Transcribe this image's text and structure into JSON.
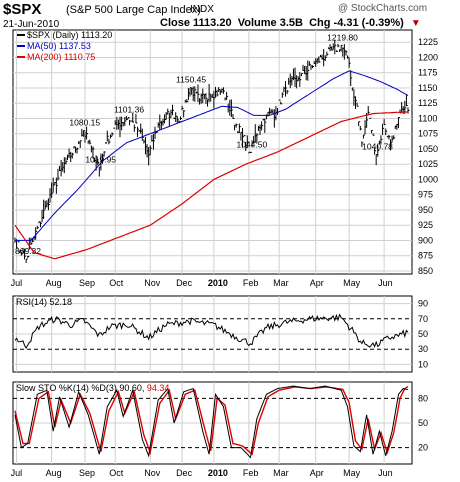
{
  "header": {
    "symbol": "$SPX",
    "description": "(S&P 500 Large Cap Index)",
    "exchange": "INDX",
    "watermark": "@ StockCharts.com",
    "date": "21-Jun-2010",
    "close_label": "Close",
    "close_value": "1113.20",
    "volume_label": "Volume",
    "volume_value": "3.5B",
    "chg_label": "Chg",
    "chg_value": "-4.31 (-0.39%)",
    "chg_icon": "down-triangle-icon"
  },
  "chart_data": [
    {
      "type": "line",
      "panel": "price",
      "legend": [
        "$SPX (Daily) 1113.20",
        "MA(50) 1137.53",
        "MA(200) 1110.75"
      ],
      "ylim": [
        845,
        1245
      ],
      "y_ticks": [
        850,
        875,
        900,
        925,
        950,
        975,
        1000,
        1025,
        1050,
        1075,
        1100,
        1125,
        1150,
        1175,
        1200,
        1225
      ],
      "x_ticks": [
        "Jul",
        "Aug",
        "Sep",
        "Oct",
        "Nov",
        "Dec",
        "2010",
        "Feb",
        "Mar",
        "Apr",
        "May",
        "Jun"
      ],
      "x_tick_index": [
        1,
        23,
        44,
        63,
        85,
        105,
        125,
        147,
        166,
        189,
        210,
        232
      ],
      "n_days": 248,
      "annotations": [
        {
          "day": 7,
          "value": 869.32,
          "label": "869.32"
        },
        {
          "day": 43,
          "value": 1080.15,
          "label": "1080.15"
        },
        {
          "day": 53,
          "value": 1019.95,
          "label": "1019.95"
        },
        {
          "day": 71,
          "value": 1101.36,
          "label": "1101.36"
        },
        {
          "day": 110,
          "value": 1150.45,
          "label": "1150.45"
        },
        {
          "day": 148,
          "value": 1044.5,
          "label": "1044.50"
        },
        {
          "day": 205,
          "value": 1219.8,
          "label": "1219.80"
        },
        {
          "day": 227,
          "value": 1040.78,
          "label": "1040.78"
        }
      ],
      "price_anchors": [
        [
          0,
          900
        ],
        [
          7,
          869.32
        ],
        [
          12,
          905
        ],
        [
          20,
          960
        ],
        [
          30,
          1020
        ],
        [
          40,
          1060
        ],
        [
          43,
          1080.15
        ],
        [
          48,
          1050
        ],
        [
          53,
          1019.95
        ],
        [
          57,
          1060
        ],
        [
          64,
          1090
        ],
        [
          71,
          1101.36
        ],
        [
          78,
          1080
        ],
        [
          84,
          1040
        ],
        [
          90,
          1090
        ],
        [
          98,
          1110
        ],
        [
          104,
          1100
        ],
        [
          110,
          1150.45
        ],
        [
          116,
          1130
        ],
        [
          122,
          1140
        ],
        [
          131,
          1145
        ],
        [
          137,
          1100
        ],
        [
          143,
          1070
        ],
        [
          148,
          1044.5
        ],
        [
          153,
          1085
        ],
        [
          158,
          1105
        ],
        [
          164,
          1110
        ],
        [
          170,
          1150
        ],
        [
          178,
          1165
        ],
        [
          188,
          1190
        ],
        [
          196,
          1205
        ],
        [
          205,
          1219.8
        ],
        [
          209,
          1200
        ],
        [
          212,
          1150
        ],
        [
          215,
          1120
        ],
        [
          218,
          1060
        ],
        [
          222,
          1110
        ],
        [
          227,
          1040.78
        ],
        [
          232,
          1090
        ],
        [
          236,
          1060
        ],
        [
          240,
          1090
        ],
        [
          244,
          1115
        ],
        [
          247,
          1113.2
        ]
      ],
      "ma50_anchors": [
        [
          0,
          900
        ],
        [
          10,
          900
        ],
        [
          25,
          945
        ],
        [
          40,
          985
        ],
        [
          55,
          1030
        ],
        [
          70,
          1060
        ],
        [
          85,
          1075
        ],
        [
          100,
          1090
        ],
        [
          115,
          1105
        ],
        [
          130,
          1120
        ],
        [
          140,
          1118
        ],
        [
          150,
          1105
        ],
        [
          160,
          1105
        ],
        [
          170,
          1115
        ],
        [
          185,
          1140
        ],
        [
          200,
          1165
        ],
        [
          210,
          1178
        ],
        [
          220,
          1170
        ],
        [
          230,
          1160
        ],
        [
          240,
          1148
        ],
        [
          247,
          1137.53
        ]
      ],
      "ma200_anchors": [
        [
          0,
          925
        ],
        [
          12,
          880
        ],
        [
          25,
          870
        ],
        [
          45,
          885
        ],
        [
          65,
          905
        ],
        [
          85,
          925
        ],
        [
          105,
          960
        ],
        [
          125,
          1000
        ],
        [
          145,
          1025
        ],
        [
          165,
          1045
        ],
        [
          185,
          1070
        ],
        [
          205,
          1095
        ],
        [
          225,
          1108
        ],
        [
          240,
          1110
        ],
        [
          247,
          1110.75
        ]
      ]
    },
    {
      "type": "line",
      "panel": "rsi",
      "legend": "RSI(14) 52.18",
      "ylim": [
        0,
        100
      ],
      "y_ticks": [
        10,
        30,
        50,
        70,
        90
      ],
      "reference_lines": [
        30,
        70
      ],
      "anchors": [
        [
          0,
          45
        ],
        [
          7,
          35
        ],
        [
          15,
          60
        ],
        [
          25,
          70
        ],
        [
          35,
          62
        ],
        [
          43,
          68
        ],
        [
          53,
          48
        ],
        [
          60,
          60
        ],
        [
          71,
          63
        ],
        [
          84,
          45
        ],
        [
          95,
          62
        ],
        [
          110,
          67
        ],
        [
          125,
          62
        ],
        [
          140,
          45
        ],
        [
          148,
          38
        ],
        [
          158,
          58
        ],
        [
          170,
          65
        ],
        [
          185,
          70
        ],
        [
          205,
          72
        ],
        [
          212,
          55
        ],
        [
          218,
          38
        ],
        [
          227,
          35
        ],
        [
          235,
          45
        ],
        [
          241,
          48
        ],
        [
          247,
          52.18
        ]
      ]
    },
    {
      "type": "line",
      "panel": "stochastic",
      "legend_prefix": "Slow STO %K(14) %D(3) 90.60, ",
      "legend_d": "94.34",
      "ylim": [
        0,
        100
      ],
      "y_ticks": [
        20,
        50,
        80
      ],
      "reference_lines": [
        20,
        80
      ],
      "k_anchors": [
        [
          0,
          60
        ],
        [
          4,
          20
        ],
        [
          8,
          25
        ],
        [
          14,
          85
        ],
        [
          20,
          90
        ],
        [
          24,
          40
        ],
        [
          28,
          82
        ],
        [
          34,
          45
        ],
        [
          40,
          88
        ],
        [
          46,
          60
        ],
        [
          53,
          12
        ],
        [
          58,
          70
        ],
        [
          64,
          90
        ],
        [
          68,
          58
        ],
        [
          74,
          90
        ],
        [
          80,
          30
        ],
        [
          84,
          10
        ],
        [
          90,
          78
        ],
        [
          96,
          92
        ],
        [
          100,
          50
        ],
        [
          106,
          88
        ],
        [
          112,
          92
        ],
        [
          118,
          40
        ],
        [
          122,
          12
        ],
        [
          126,
          85
        ],
        [
          131,
          70
        ],
        [
          136,
          20
        ],
        [
          142,
          20
        ],
        [
          148,
          8
        ],
        [
          152,
          55
        ],
        [
          158,
          85
        ],
        [
          165,
          92
        ],
        [
          175,
          95
        ],
        [
          185,
          92
        ],
        [
          195,
          95
        ],
        [
          205,
          90
        ],
        [
          209,
          70
        ],
        [
          213,
          22
        ],
        [
          217,
          15
        ],
        [
          221,
          60
        ],
        [
          225,
          12
        ],
        [
          229,
          40
        ],
        [
          233,
          10
        ],
        [
          237,
          40
        ],
        [
          241,
          85
        ],
        [
          244,
          92
        ],
        [
          247,
          90.6
        ]
      ],
      "d_anchors": [
        [
          0,
          65
        ],
        [
          5,
          25
        ],
        [
          9,
          25
        ],
        [
          15,
          80
        ],
        [
          21,
          88
        ],
        [
          25,
          45
        ],
        [
          29,
          78
        ],
        [
          35,
          50
        ],
        [
          41,
          85
        ],
        [
          47,
          62
        ],
        [
          54,
          15
        ],
        [
          59,
          65
        ],
        [
          65,
          88
        ],
        [
          69,
          62
        ],
        [
          75,
          88
        ],
        [
          81,
          35
        ],
        [
          85,
          14
        ],
        [
          91,
          74
        ],
        [
          97,
          90
        ],
        [
          101,
          55
        ],
        [
          107,
          85
        ],
        [
          113,
          90
        ],
        [
          119,
          45
        ],
        [
          123,
          16
        ],
        [
          127,
          80
        ],
        [
          132,
          72
        ],
        [
          137,
          25
        ],
        [
          143,
          22
        ],
        [
          149,
          12
        ],
        [
          153,
          50
        ],
        [
          159,
          82
        ],
        [
          166,
          90
        ],
        [
          176,
          94
        ],
        [
          186,
          92
        ],
        [
          196,
          94
        ],
        [
          206,
          91
        ],
        [
          210,
          75
        ],
        [
          214,
          28
        ],
        [
          218,
          18
        ],
        [
          222,
          55
        ],
        [
          226,
          18
        ],
        [
          230,
          38
        ],
        [
          234,
          14
        ],
        [
          238,
          38
        ],
        [
          242,
          80
        ],
        [
          245,
          92
        ],
        [
          247,
          94.34
        ]
      ]
    }
  ],
  "colors": {
    "price": "#000000",
    "ma50": "#0000c0",
    "ma200": "#dd0000",
    "grid": "#d0d0d0",
    "stoch_d": "#dd0000"
  }
}
